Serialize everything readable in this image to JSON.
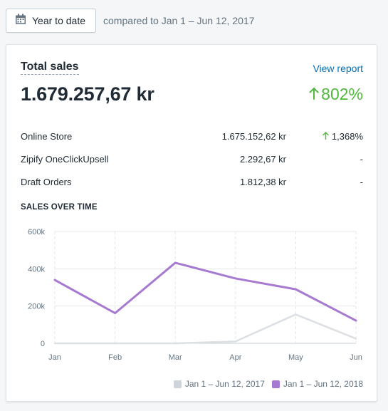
{
  "date_button": {
    "label": "Year to date",
    "icon": "calendar-icon"
  },
  "compare_text": "compared to Jan 1 – Jun 12, 2017",
  "card": {
    "title": "Total sales",
    "view_report": "View report",
    "total": "1.679.257,67 kr",
    "growth": "802%",
    "section_title": "SALES OVER TIME",
    "rows": [
      {
        "name": "Online Store",
        "amount": "1.675.152,62 kr",
        "change": "1,368%",
        "up": true
      },
      {
        "name": "Zipify OneClickUpsell",
        "amount": "2.292,67 kr",
        "change": "-",
        "up": false
      },
      {
        "name": "Draft Orders",
        "amount": "1.812,38 kr",
        "change": "-",
        "up": false
      }
    ]
  },
  "colors": {
    "accent_green": "#50b83c",
    "link_blue": "#006fbb",
    "series_2018": "#a77ad1",
    "series_2017": "#dcdfe3"
  },
  "chart_data": {
    "type": "line",
    "x": [
      "Jan",
      "Feb",
      "Mar",
      "Apr",
      "May",
      "Jun"
    ],
    "y_ticks": [
      "0",
      "200k",
      "400k",
      "600k"
    ],
    "ylim": [
      0,
      600000
    ],
    "grid": true,
    "series": [
      {
        "name": "Jan 1 – Jun 12, 2017",
        "color": "#dcdfe3",
        "values": [
          0,
          0,
          0,
          10000,
          155000,
          25000
        ]
      },
      {
        "name": "Jan 1 – Jun 12, 2018",
        "color": "#a77ad1",
        "values": [
          340000,
          162000,
          432000,
          348000,
          290000,
          122000
        ]
      }
    ],
    "legend": "bottom-right"
  }
}
